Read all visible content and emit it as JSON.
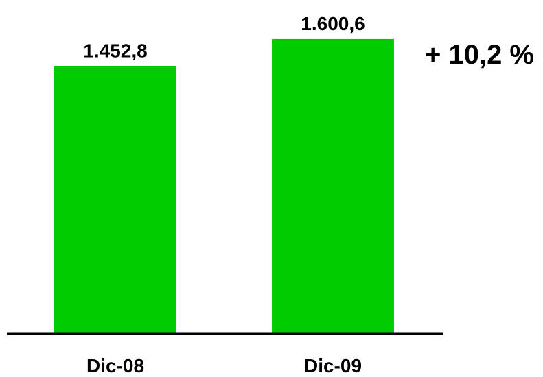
{
  "chart_data": {
    "type": "bar",
    "categories": [
      "Dic-08",
      "Dic-09"
    ],
    "values": [
      1452.8,
      1600.6
    ],
    "data_labels": [
      "1.452,8",
      "1.600,6"
    ],
    "annotation": "+ 10,2 %",
    "ylim": [
      0,
      1700
    ],
    "grid": false,
    "legend": "none",
    "colors": {
      "bar": "#00CC00",
      "axis": "#000000",
      "text": "#000000"
    }
  }
}
